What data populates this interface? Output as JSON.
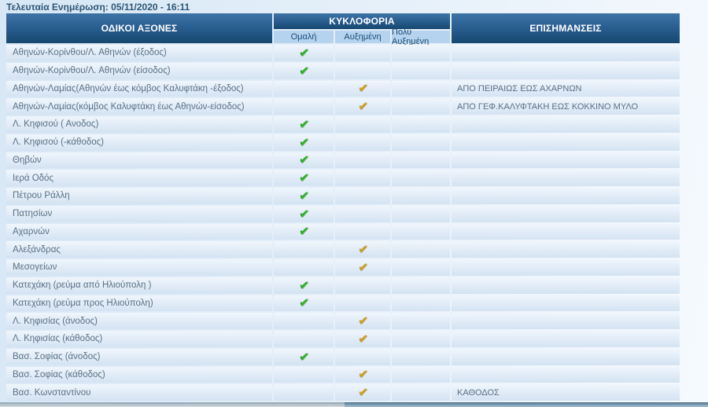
{
  "page": {
    "last_update_label": "Τελευταία Ενημέρωση:",
    "last_update_value": "05/11/2020 - 16:11"
  },
  "table": {
    "columns": {
      "axes": "ΟΔΙΚΟΙ ΑΞΟΝΕΣ",
      "traffic_group": "ΚΥΚΛΟΦΟΡΙΑ",
      "levels": [
        "Ομαλή",
        "Αυξημένη",
        "Πολύ Αυξημένη"
      ],
      "remarks": "ΕΠΙΣΗΜΑΝΣΕΙΣ"
    },
    "check_icon": "✔",
    "colors": {
      "normal_check": "#29b21d",
      "increased_check": "#d3a01d",
      "header_bg": "#16476f",
      "subheader_bg": "#b5d3ee"
    },
    "rows": [
      {
        "axis": "Αθηνών-Κορίνθου/Λ. Αθηνών (έξοδος)",
        "level": "normal",
        "remark": ""
      },
      {
        "axis": "Αθηνών-Κορίνθου/Λ. Αθηνών (είσοδος)",
        "level": "normal",
        "remark": ""
      },
      {
        "axis": "Αθηνών-Λαμίας(Αθηνών έως κόμβος Καλυφτάκη -έξοδος)",
        "level": "increased",
        "remark": "ΑΠΟ ΠΕΙΡΑΙΩΣ ΕΩΣ ΑΧΑΡΝΩΝ"
      },
      {
        "axis": "Αθηνών-Λαμίας(κόμβος Καλυφτάκη έως Αθηνών-είσοδος)",
        "level": "increased",
        "remark": "ΑΠΟ ΓΕΦ.ΚΑΛΥΦΤΑΚΗ ΕΩΣ ΚΟΚΚΙΝΟ ΜΥΛΟ"
      },
      {
        "axis": "Λ. Κηφισού ( Ανοδος)",
        "level": "normal",
        "remark": ""
      },
      {
        "axis": "Λ. Κηφισού (-κάθοδος)",
        "level": "normal",
        "remark": ""
      },
      {
        "axis": "Θηβών",
        "level": "normal",
        "remark": ""
      },
      {
        "axis": "Ιερά Οδός",
        "level": "normal",
        "remark": ""
      },
      {
        "axis": "Πέτρου Ράλλη",
        "level": "normal",
        "remark": ""
      },
      {
        "axis": "Πατησίων",
        "level": "normal",
        "remark": ""
      },
      {
        "axis": "Αχαρνών",
        "level": "normal",
        "remark": ""
      },
      {
        "axis": "Αλεξάνδρας",
        "level": "increased",
        "remark": ""
      },
      {
        "axis": "Μεσογείων",
        "level": "increased",
        "remark": ""
      },
      {
        "axis": "Κατεχάκη (ρεύμα από Ηλιούπολη )",
        "level": "normal",
        "remark": ""
      },
      {
        "axis": "Κατεχάκη (ρεύμα προς Ηλιούπολη)",
        "level": "normal",
        "remark": ""
      },
      {
        "axis": "Λ. Κηφισίας (άνοδος)",
        "level": "increased",
        "remark": ""
      },
      {
        "axis": "Λ. Κηφισίας (κάθοδος)",
        "level": "increased",
        "remark": ""
      },
      {
        "axis": "Βασ. Σοφίας (άνοδος)",
        "level": "normal",
        "remark": ""
      },
      {
        "axis": "Βασ. Σοφίας (κάθοδος)",
        "level": "increased",
        "remark": ""
      },
      {
        "axis": "Βασ. Κωνσταντίνου",
        "level": "increased",
        "remark": "ΚΑΘΟΔΟΣ"
      }
    ]
  }
}
